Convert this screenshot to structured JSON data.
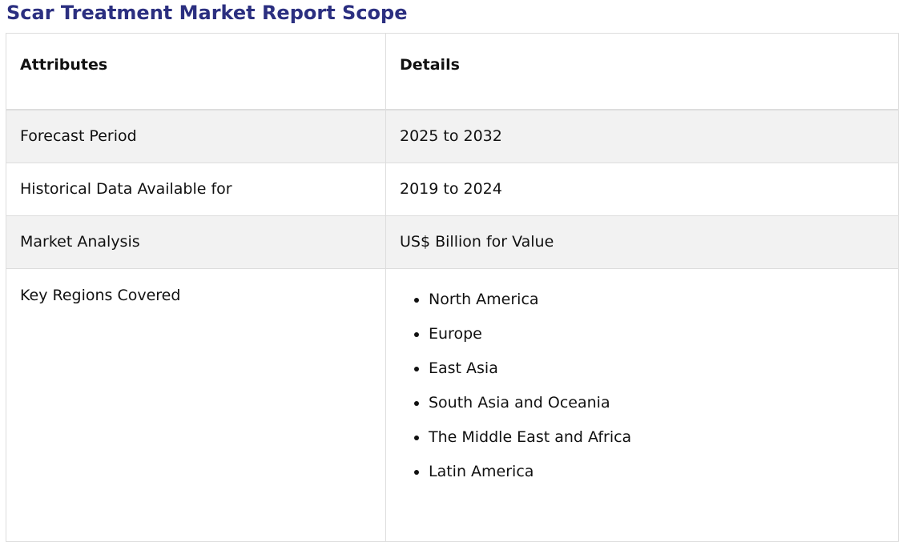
{
  "page": {
    "title": "Scar Treatment Market Report Scope"
  },
  "table": {
    "headers": {
      "attributes": "Attributes",
      "details": "Details"
    },
    "rows": [
      {
        "attribute": "Forecast Period",
        "detail": "2025 to 2032"
      },
      {
        "attribute": "Historical Data Available for",
        "detail": "2019 to 2024"
      },
      {
        "attribute": "Market Analysis",
        "detail": "US$ Billion for Value"
      },
      {
        "attribute": "Key Regions Covered"
      }
    ],
    "regions": [
      "North America",
      "Europe",
      "East Asia",
      "South Asia and Oceania",
      "The Middle East and Africa",
      "Latin America"
    ]
  },
  "colors": {
    "title": "#2b2f80",
    "shaded_row": "#f2f2f2",
    "border": "#dddddd"
  }
}
